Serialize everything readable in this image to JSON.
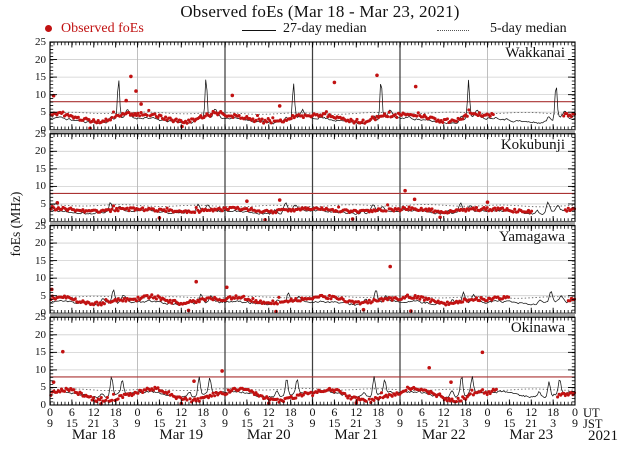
{
  "header": {
    "title": "Observed foEs (Mar 18 - Mar 23, 2021)"
  },
  "colors": {
    "observed": "#c11212",
    "threshold_line": "#aa3333",
    "median27_line": "#141414",
    "median5_line": "#666666",
    "grid_light": "#cfcfcf",
    "day_line_light": "#b8b8b8",
    "day_line_dark": "#3f3f3f",
    "separator": "#a9a9a9"
  },
  "chart_data": {
    "type": "scatter",
    "title": "Observed foEs (Mar 18 - Mar 23, 2021)",
    "legend": {
      "observed": "Observed foEs",
      "median27": "27-day median",
      "median5": "5-day median"
    },
    "y_axis": {
      "label": "foEs (MHz)",
      "ticks": [
        0,
        5,
        10,
        15,
        20,
        25
      ],
      "range": [
        0,
        25
      ]
    },
    "x_axis": {
      "dates": [
        "Mar 18",
        "Mar 19",
        "Mar 20",
        "Mar 21",
        "Mar 22",
        "Mar 23"
      ],
      "year": "2021",
      "hours_per_day": 24,
      "total_hours": 144,
      "hour_ticks_ut": [
        "0",
        "6",
        "12",
        "18"
      ],
      "hour_ticks_jst": [
        "9",
        "15",
        "21",
        "3"
      ],
      "last_tick_ut": "0",
      "last_tick_jst": "9",
      "unit_top": "UT",
      "unit_bottom": "JST",
      "day_lines_light_h": [
        24,
        120
      ],
      "day_lines_dark_h": [
        48,
        72,
        96
      ]
    },
    "panels": [
      {
        "station": "Wakkanai",
        "threshold": 8,
        "median5": 4.7,
        "median27_profile": [
          3.3,
          3.4,
          3.5,
          3.4,
          3.2,
          3.0,
          2.8,
          2.6,
          2.5,
          2.4,
          2.3,
          2.2,
          2.1,
          2.0,
          2.0,
          2.1,
          2.3,
          2.6,
          3.0,
          3.3,
          3.6,
          3.8,
          3.6,
          3.4
        ],
        "spikes": [
          {
            "h": 18.8,
            "amp": 11.5,
            "sigma": 0.28
          },
          {
            "h": 21.3,
            "amp": 1.8,
            "sigma": 0.5
          },
          {
            "h": 16.8,
            "amp": 1.2,
            "sigma": 0.4
          }
        ],
        "dots_profile": [
          4.0,
          4.2,
          4.3,
          4.2,
          4.0,
          3.8,
          3.6,
          3.3,
          3.0,
          2.8,
          2.6,
          2.4,
          2.3,
          2.2,
          2.3,
          2.5,
          2.8,
          3.2,
          3.6,
          3.9,
          4.1,
          4.2,
          4.1,
          4.0
        ],
        "dots_noise": 0.5,
        "gaps": [
          [
            122,
            140.5
          ]
        ],
        "outliers": [
          [
            1,
            9.7
          ],
          [
            20.9,
            8.3
          ],
          [
            22.2,
            15.2
          ],
          [
            23.6,
            11.0
          ],
          [
            25,
            7.3
          ],
          [
            11,
            0.4
          ],
          [
            36.2,
            0.9
          ],
          [
            50,
            9.8
          ],
          [
            63,
            6.8
          ],
          [
            78,
            13.5
          ],
          [
            89.7,
            15.5
          ],
          [
            100.3,
            12.3
          ]
        ],
        "seed": 11
      },
      {
        "station": "Kokubunji",
        "threshold": 8,
        "median5": 4.5,
        "median27_profile": [
          3.0,
          3.1,
          3.2,
          3.1,
          3.0,
          2.9,
          2.8,
          2.7,
          2.6,
          2.5,
          2.4,
          2.3,
          2.2,
          2.2,
          2.3,
          2.4,
          2.6,
          2.8,
          2.9,
          3.0,
          3.1,
          3.1,
          3.0,
          3.0
        ],
        "spikes": [
          {
            "h": 16.6,
            "amp": 2.6,
            "sigma": 0.45
          },
          {
            "h": 19.2,
            "amp": 1.6,
            "sigma": 0.5
          },
          {
            "h": 13.5,
            "amp": 1.0,
            "sigma": 0.4
          }
        ],
        "dots_profile": [
          3.4,
          3.5,
          3.6,
          3.6,
          3.5,
          3.4,
          3.3,
          3.2,
          3.1,
          3.0,
          2.9,
          2.8,
          2.7,
          2.7,
          2.8,
          2.9,
          3.0,
          3.1,
          3.2,
          3.3,
          3.3,
          3.4,
          3.4,
          3.4
        ],
        "dots_noise": 0.45,
        "gaps": [
          [
            132.5,
            141
          ]
        ],
        "outliers": [
          [
            2,
            5.3
          ],
          [
            30,
            1.0
          ],
          [
            54,
            5.8
          ],
          [
            59,
            0.5
          ],
          [
            63,
            6.1
          ],
          [
            83,
            0.7
          ],
          [
            97.4,
            8.8
          ],
          [
            100,
            6.3
          ],
          [
            107,
            1.2
          ],
          [
            120,
            5.5
          ]
        ],
        "seed": 22
      },
      {
        "station": "Yamagawa",
        "threshold": null,
        "median5": 4.6,
        "median27_profile": [
          3.2,
          3.3,
          3.4,
          3.4,
          3.3,
          3.2,
          3.1,
          3.0,
          2.9,
          2.8,
          2.7,
          2.6,
          2.5,
          2.5,
          2.6,
          2.7,
          2.8,
          3.0,
          3.1,
          3.2,
          3.3,
          3.3,
          3.2,
          3.2
        ],
        "spikes": [
          {
            "h": 17.4,
            "amp": 3.2,
            "sigma": 0.4
          },
          {
            "h": 20.2,
            "amp": 1.6,
            "sigma": 0.5
          },
          {
            "h": 14.5,
            "amp": 1.2,
            "sigma": 0.45
          }
        ],
        "dots_profile": [
          3.8,
          4.1,
          4.3,
          4.4,
          4.4,
          4.3,
          4.1,
          3.8,
          3.5,
          3.2,
          3.0,
          2.8,
          2.7,
          2.7,
          2.8,
          3.0,
          3.2,
          3.4,
          3.6,
          3.7,
          3.8,
          3.8,
          3.8,
          3.8
        ],
        "dots_noise": 0.5,
        "gaps": [
          [
            126,
            142
          ]
        ],
        "outliers": [
          [
            0.5,
            6.8
          ],
          [
            38,
            0.8
          ],
          [
            40.1,
            9.0
          ],
          [
            48.5,
            7.4
          ],
          [
            62,
            0.5
          ],
          [
            86,
            1.0
          ],
          [
            93.3,
            13.3
          ],
          [
            99,
            0.6
          ]
        ],
        "seed": 33
      },
      {
        "station": "Okinawa",
        "threshold": 8,
        "median5": 4.4,
        "median27_profile": [
          3.5,
          3.6,
          3.7,
          3.8,
          3.8,
          3.7,
          3.5,
          3.3,
          3.0,
          2.8,
          2.6,
          2.4,
          2.3,
          2.2,
          2.2,
          2.3,
          2.5,
          2.8,
          3.0,
          3.2,
          3.4,
          3.5,
          3.5,
          3.5
        ],
        "spikes": [
          {
            "h": 16.9,
            "amp": 4.8,
            "sigma": 0.32
          },
          {
            "h": 19.8,
            "amp": 4.2,
            "sigma": 0.34
          },
          {
            "h": 14.2,
            "amp": 1.5,
            "sigma": 0.4
          }
        ],
        "dots_profile": [
          3.3,
          3.9,
          4.3,
          4.6,
          4.7,
          4.6,
          4.4,
          4.0,
          3.5,
          3.0,
          2.5,
          2.1,
          1.8,
          1.5,
          1.3,
          1.2,
          1.3,
          1.6,
          2.0,
          2.4,
          2.8,
          3.0,
          3.2,
          3.3
        ],
        "dots_noise": 0.55,
        "gaps": [
          [
            122.7,
            139
          ]
        ],
        "outliers": [
          [
            1,
            6.5
          ],
          [
            3.5,
            15.2
          ],
          [
            14,
            0.3
          ],
          [
            36,
            0.4
          ],
          [
            39.5,
            6.8
          ],
          [
            47.2,
            9.7
          ],
          [
            60,
            0.5
          ],
          [
            84,
            0.6
          ],
          [
            104,
            10.6
          ],
          [
            110,
            6.5
          ],
          [
            118.6,
            15.0
          ]
        ],
        "seed": 44
      }
    ]
  }
}
